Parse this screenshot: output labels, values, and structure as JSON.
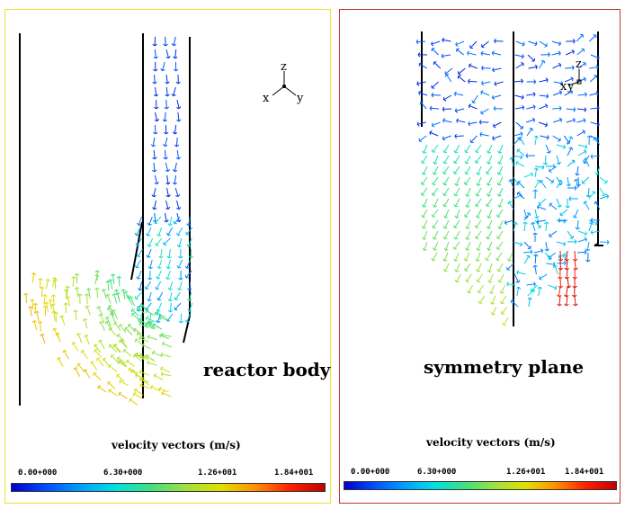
{
  "panels": [
    {
      "id": "left",
      "title": "reactor body",
      "legend_title": "velocity vectors (m/s)",
      "colorbar_ticks": [
        "0.00+000",
        "6.30+000",
        "1.26+001",
        "1.84+001"
      ],
      "axes": {
        "z": "z",
        "x": "x",
        "y": "y"
      },
      "frame_color": "#e9e23a"
    },
    {
      "id": "right",
      "title": "symmetry plane",
      "legend_title": "velocity vectors (m/s)",
      "colorbar_ticks": [
        "0.00+000",
        "6.30+000",
        "1.26+001",
        "1.84+001"
      ],
      "axes": {
        "z": "z",
        "x": "x",
        "y": "y"
      },
      "frame_color": "#c0392b"
    }
  ],
  "colormap": [
    "#0000c8",
    "#0050ff",
    "#00a0ff",
    "#00e0e0",
    "#40e080",
    "#a0e040",
    "#e0e000",
    "#ff9000",
    "#ff2000",
    "#c00000"
  ],
  "velocity_range": [
    0.0,
    18.4
  ]
}
